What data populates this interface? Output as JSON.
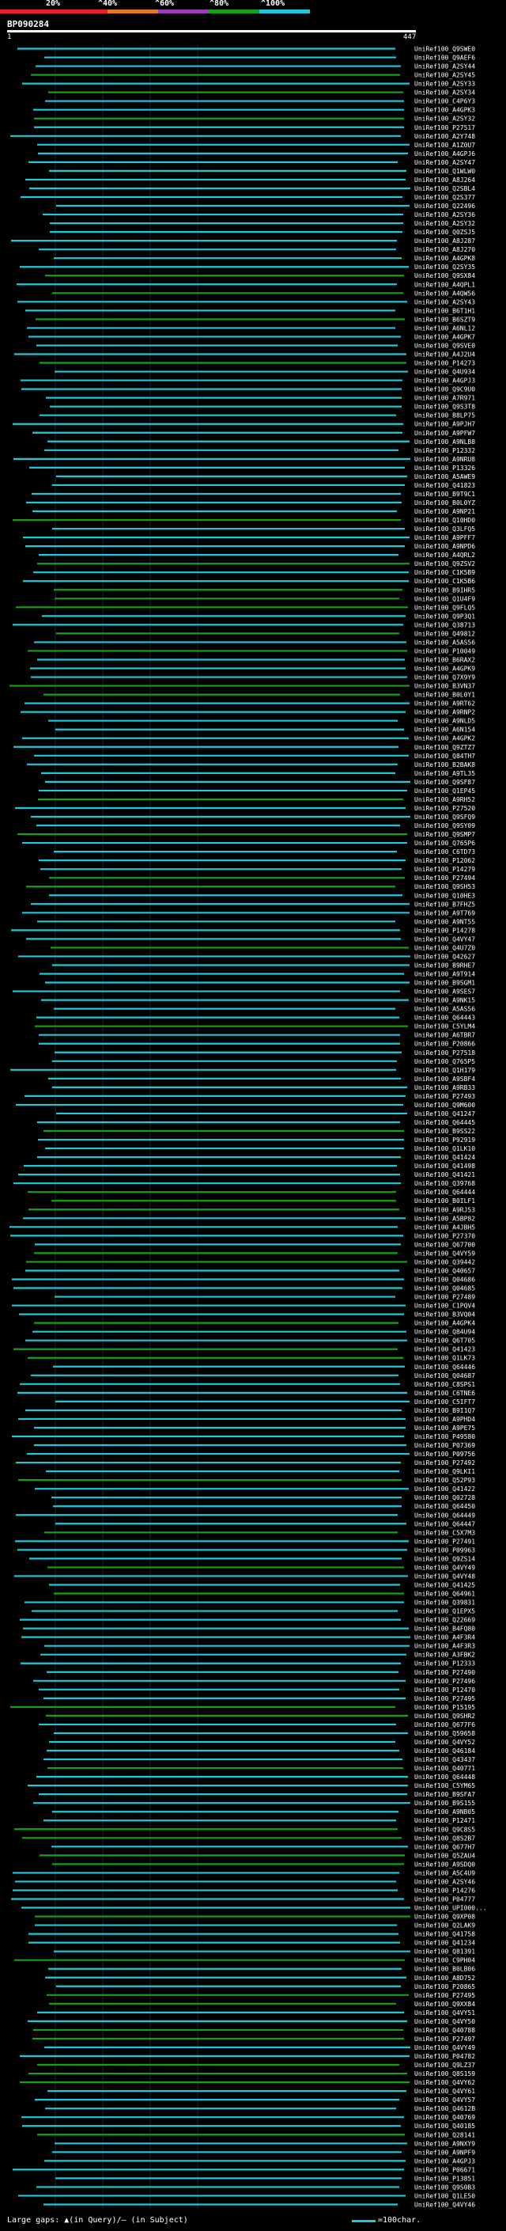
{
  "header": {
    "percent_labels": [
      "20%",
      "^40%",
      "^60%",
      "^80%",
      "^100%"
    ],
    "colors": {
      "c20": "#e8222c",
      "c40": "#e8781e",
      "c60": "#9b3db8",
      "c80": "#16a016",
      "c100": "#1ec8d8",
      "grid": "#1e2a3a"
    }
  },
  "query": {
    "id": "BP090284",
    "start": "1",
    "end": "447"
  },
  "hits": [
    "UniRef100_Q9SWE0",
    "UniRef100_Q9AEF6",
    "UniRef100_A2SY44",
    "UniRef100_A2SY45",
    "UniRef100_A2SY33",
    "UniRef100_A2SY34",
    "UniRef100_C4P6Y3",
    "UniRef100_A4GPK3",
    "UniRef100_A2SY32",
    "UniRef100_P27517",
    "UniRef100_A2Y748",
    "UniRef100_A1Z0U7",
    "UniRef100_A4GPJ6",
    "UniRef100_A2SY47",
    "UniRef100_Q1WLW0",
    "UniRef100_A8J264",
    "UniRef100_Q2SBL4",
    "UniRef100_Q2S377",
    "UniRef100_Q22496",
    "UniRef100_A2SY36",
    "UniRef100_A2SY32",
    "UniRef100_Q0ZSJ5",
    "UniRef100_A8J287",
    "UniRef100_A8J270",
    "UniRef100_A4GPK8",
    "UniRef100_Q2SY35",
    "UniRef100_Q9SX84",
    "UniRef100_A4QPL1",
    "UniRef100_A4QW56",
    "UniRef100_A2SY43",
    "UniRef100_B6T1H1",
    "UniRef100_B6SZT9",
    "UniRef100_A6NL12",
    "UniRef100_A4GPK7",
    "UniRef100_Q9SVE0",
    "UniRef100_A4J2U4",
    "UniRef100_P14273",
    "UniRef100_Q4U934",
    "UniRef100_A4GPJ3",
    "UniRef100_Q9C9U0",
    "UniRef100_A7R971",
    "UniRef100_Q9S3T8",
    "UniRef100_B8LP75",
    "UniRef100_A9PJH7",
    "UniRef100_A9PFW7",
    "UniRef100_A9NLB8",
    "UniRef100_P12332",
    "UniRef100_A9NRU8",
    "UniRef100_P13326",
    "UniRef100_A5AWE9",
    "UniRef100_Q41823",
    "UniRef100_B9T9C1",
    "UniRef100_B0L0YZ",
    "UniRef100_A9NP21",
    "UniRef100_Q10HD0",
    "UniRef100_Q3LFQ5",
    "UniRef100_A9PFF7",
    "UniRef100_A9NPD6",
    "UniRef100_A4QRL2",
    "UniRef100_Q9ZSV2",
    "UniRef100_C1K5B9",
    "UniRef100_C1K5B6",
    "UniRef100_B9IHR5",
    "UniRef100_Q1U4F9",
    "UniRef100_Q9FLQ5",
    "UniRef100_Q9P3Q1",
    "UniRef100_Q38713",
    "UniRef100_Q49812",
    "UniRef100_A5AS56",
    "UniRef100_P10049",
    "UniRef100_B6RAX2",
    "UniRef100_A4GPK9",
    "UniRef100_Q7X9Y9",
    "UniRef100_B3VN37",
    "UniRef100_B0L0Y1",
    "UniRef100_A9RT62",
    "UniRef100_A9RNP2",
    "UniRef100_A9NLD5",
    "UniRef100_A6N154",
    "UniRef100_A4GPK2",
    "UniRef100_Q9ZTZ7",
    "UniRef100_Q84TH7",
    "UniRef100_B2BAK8",
    "UniRef100_A9TL35",
    "UniRef100_Q9SF87",
    "UniRef100_Q1EP45",
    "UniRef100_A9RH52",
    "UniRef100_P27520",
    "UniRef100_Q9SFQ9",
    "UniRef100_Q9SY09",
    "UniRef100_Q9SMP7",
    "UniRef100_Q765P6",
    "UniRef100_C6TD73",
    "UniRef100_P12062",
    "UniRef100_P14279",
    "UniRef100_P27494",
    "UniRef100_Q9SH53",
    "UniRef100_Q10HE3",
    "UniRef100_B7FHZ5",
    "UniRef100_A9T769",
    "UniRef100_A9NT55",
    "UniRef100_P14278",
    "UniRef100_Q4VY47",
    "UniRef100_Q4U7Z0",
    "UniRef100_Q42627",
    "UniRef100_B9RHE7",
    "UniRef100_A9T914",
    "UniRef100_B9SGM1",
    "UniRef100_A9SES7",
    "UniRef100_A9NK15",
    "UniRef100_A5AS56",
    "UniRef100_Q64443",
    "UniRef100_C5YLM4",
    "UniRef100_A6TBR7",
    "UniRef100_P20866",
    "UniRef100_P27518",
    "UniRef100_Q765P5",
    "UniRef100_Q1H179",
    "UniRef100_A9SBF4",
    "UniRef100_A9RB33",
    "UniRef100_P27493",
    "UniRef100_Q9M600",
    "UniRef100_Q41247",
    "UniRef100_Q64445",
    "UniRef100_B9SS22",
    "UniRef100_P92919",
    "UniRef100_Q1LK10",
    "UniRef100_Q41424",
    "UniRef100_Q41498",
    "UniRef100_Q41421",
    "UniRef100_Q39768",
    "UniRef100_Q64444",
    "UniRef100_B0ILF1",
    "UniRef100_A9RJ53",
    "UniRef100_A5BP82",
    "UniRef100_A4JBH5",
    "UniRef100_P27370",
    "UniRef100_Q67700",
    "UniRef100_Q4VY59",
    "UniRef100_Q39442",
    "UniRef100_Q40657",
    "UniRef100_Q04686",
    "UniRef100_Q04685",
    "UniRef100_P27489",
    "UniRef100_C1PQV4",
    "UniRef100_B3VQ04",
    "UniRef100_A4GPK4",
    "UniRef100_Q84U94",
    "UniRef100_Q6T705",
    "UniRef100_Q41423",
    "UniRef100_Q1LK73",
    "UniRef100_Q64446",
    "UniRef100_Q04687",
    "UniRef100_C8SPS1",
    "UniRef100_C6TNE6",
    "UniRef100_C5IFT7",
    "UniRef100_B9I1Q7",
    "UniRef100_A9PHD4",
    "UniRef100_A9PE75",
    "UniRef100_P49580",
    "UniRef100_P07369",
    "UniRef100_P09756",
    "UniRef100_P27492",
    "UniRef100_Q9LKI1",
    "UniRef100_Q52P93",
    "UniRef100_Q41422",
    "UniRef100_Q02728",
    "UniRef100_Q64450",
    "UniRef100_Q64449",
    "UniRef100_Q64447",
    "UniRef100_C5X7M3",
    "UniRef100_P27491",
    "UniRef100_P09963",
    "UniRef100_Q9ZS14",
    "UniRef100_Q4VY49",
    "UniRef100_Q4VY48",
    "UniRef100_Q41425",
    "UniRef100_Q64961",
    "UniRef100_Q39831",
    "UniRef100_Q1EPX5",
    "UniRef100_Q22669",
    "UniRef100_B4FQ80",
    "UniRef100_A4F3R4",
    "UniRef100_A4F3R3",
    "UniRef100_A3FBK2",
    "UniRef100_P12333",
    "UniRef100_P27490",
    "UniRef100_P27496",
    "UniRef100_P12470",
    "UniRef100_P27495",
    "UniRef100_P15195",
    "UniRef100_Q9SHR2",
    "UniRef100_Q677F6",
    "UniRef100_Q59658",
    "UniRef100_Q4VY52",
    "UniRef100_Q46184",
    "UniRef100_Q43437",
    "UniRef100_Q40771",
    "UniRef100_Q64448",
    "UniRef100_C5YM65",
    "UniRef100_B9SFA7",
    "UniRef100_B9S155",
    "UniRef100_A9NB05",
    "UniRef100_P12471",
    "UniRef100_Q9C8S5",
    "UniRef100_Q8S2B7",
    "UniRef100_Q677H7",
    "UniRef100_Q5ZAU4",
    "UniRef100_A9SDQ0",
    "UniRef100_A5C4U9",
    "UniRef100_A2SY46",
    "UniRef100_P14276",
    "UniRef100_P04777",
    "UniRef100_UPI000...",
    "UniRef100_Q9XP08",
    "UniRef100_Q2LAK9",
    "UniRef100_Q41758",
    "UniRef100_Q41234",
    "UniRef100_Q81391",
    "UniRef100_C9PH04",
    "UniRef100_B0LB06",
    "UniRef100_A8D752",
    "UniRef100_P20865",
    "UniRef100_P27495",
    "UniRef100_Q9XX84",
    "UniRef100_Q4VY51",
    "UniRef100_Q4VY50",
    "UniRef100_Q40788",
    "UniRef100_P27497",
    "UniRef100_Q4VY49",
    "UniRef100_P04782",
    "UniRef100_Q9LZ37",
    "UniRef100_Q8S159",
    "UniRef100_Q4VY62",
    "UniRef100_Q4VY61",
    "UniRef100_Q4VY57",
    "UniRef100_Q4612B",
    "UniRef100_Q40769",
    "UniRef100_Q40185",
    "UniRef100_Q28141",
    "UniRef100_A9NXY9",
    "UniRef100_A9NPF9",
    "UniRef100_A4GPJ3",
    "UniRef100_P06671",
    "UniRef100_P13851",
    "UniRef100_Q9S0B3",
    "UniRef100_Q1LE50",
    "UniRef100_Q4VY46"
  ],
  "footer": {
    "legend": "Large gaps: ▲(in Query)/– (in Subject)",
    "scale_label": "=100char."
  }
}
